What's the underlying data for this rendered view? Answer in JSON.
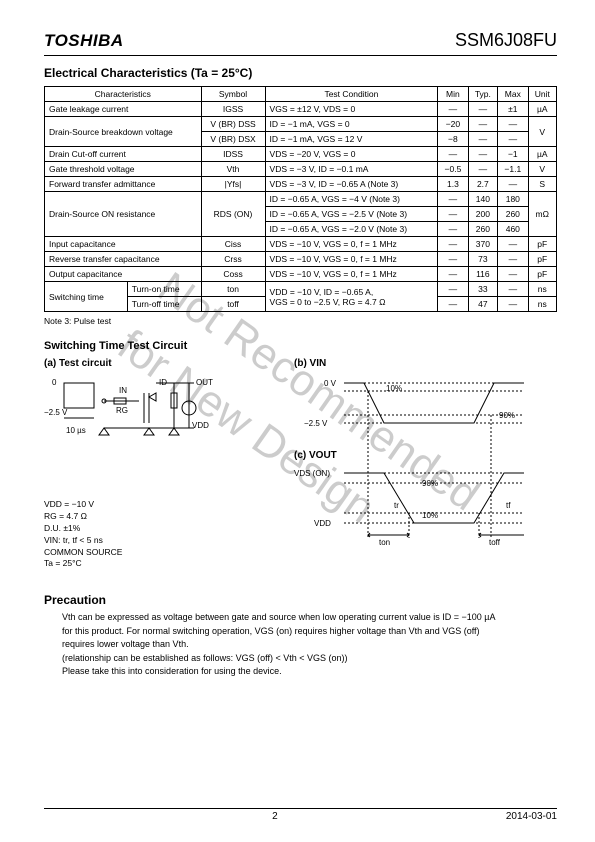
{
  "header": {
    "logo": "TOSHIBA",
    "part": "SSM6J08FU"
  },
  "sec1": {
    "title": "Electrical Characteristics (Ta = 25°C)"
  },
  "table": {
    "head": {
      "c1": "Characteristics",
      "c2": "Symbol",
      "c3": "Test Condition",
      "c4": "Min",
      "c5": "Typ.",
      "c6": "Max",
      "c7": "Unit"
    },
    "rows": [
      {
        "c1": "Gate leakage current",
        "c2": "IGSS",
        "c3": "VGS = ±12 V, VDS = 0",
        "c4": "—",
        "c5": "—",
        "c6": "±1",
        "c7": "µA"
      },
      {
        "c1": "Drain-Source breakdown voltage",
        "rs1": 2,
        "c2": "V (BR) DSS",
        "c3": "ID = −1 mA, VGS = 0",
        "c4": "−20",
        "c5": "—",
        "c6": "—",
        "c7": "V",
        "rs7": 2
      },
      {
        "c2": "V (BR) DSX",
        "c3": "ID = −1 mA, VGS = 12 V",
        "c4": "−8",
        "c5": "—",
        "c6": "—"
      },
      {
        "c1": "Drain Cut-off current",
        "c2": "IDSS",
        "c3": "VDS = −20 V, VGS = 0",
        "c4": "—",
        "c5": "—",
        "c6": "−1",
        "c7": "µA"
      },
      {
        "c1": "Gate threshold voltage",
        "c2": "Vth",
        "c3": "VDS = −3 V, ID = −0.1 mA",
        "c4": "−0.5",
        "c5": "—",
        "c6": "−1.1",
        "c7": "V"
      },
      {
        "c1": "Forward transfer admittance",
        "c2": "|Yfs|",
        "c3": "VDS = −3 V, ID = −0.65 A              (Note 3)",
        "c4": "1.3",
        "c5": "2.7",
        "c6": "—",
        "c7": "S"
      },
      {
        "c1": "Drain-Source ON resistance",
        "rs1": 3,
        "c2": "RDS (ON)",
        "rs2": 3,
        "c3": "ID = −0.65 A, VGS = −4 V              (Note 3)",
        "c4": "—",
        "c5": "140",
        "c6": "180",
        "c7": "mΩ",
        "rs7": 3
      },
      {
        "c3": "ID = −0.65 A, VGS = −2.5 V           (Note 3)",
        "c4": "—",
        "c5": "200",
        "c6": "260"
      },
      {
        "c3": "ID = −0.65 A, VGS = −2.0 V           (Note 3)",
        "c4": "—",
        "c5": "260",
        "c6": "460"
      },
      {
        "c1": "Input capacitance",
        "c2": "Ciss",
        "c3": "VDS = −10 V, VGS = 0, f = 1 MHz",
        "c4": "—",
        "c5": "370",
        "c6": "—",
        "c7": "pF"
      },
      {
        "c1": "Reverse transfer capacitance",
        "c2": "Crss",
        "c3": "VDS = −10 V, VGS = 0, f = 1 MHz",
        "c4": "—",
        "c5": "73",
        "c6": "—",
        "c7": "pF"
      },
      {
        "c1": "Output capacitance",
        "c2": "Coss",
        "c3": "VDS = −10 V, VGS = 0, f = 1 MHz",
        "c4": "—",
        "c5": "116",
        "c6": "—",
        "c7": "pF"
      },
      {
        "c1": "Switching time",
        "rs1": 2,
        "c1b": "Turn-on time",
        "c2": "ton",
        "c3": "VDD = −10 V, ID = −0.65 A,",
        "rs3": 2,
        "c4": "—",
        "c5": "33",
        "c6": "—",
        "c7": "ns"
      },
      {
        "c1b": "Turn-off time",
        "c2": "toff",
        "c3b": "VGS = 0 to −2.5 V, RG = 4.7 Ω",
        "c4": "—",
        "c5": "47",
        "c6": "—",
        "c7": "ns"
      }
    ],
    "note3": "Note 3:   Pulse test"
  },
  "circ": {
    "title": "Switching Time Test Circuit",
    "a": "(a) Test circuit",
    "b": "(b) VIN",
    "c": "(c) VOUT",
    "v0": "0",
    "v25": "−2.5 V",
    "tenus": "10 µs",
    "in": "IN",
    "id": "ID",
    "out": "OUT",
    "rg": "RG",
    "vdd": "VDD",
    "zero": "0 V",
    "ten": "10%",
    "ninety": "90%",
    "vdson": "VDS (ON)",
    "vdd2": "VDD",
    "ton": "ton",
    "toff": "toff",
    "tr": "tr",
    "tf": "tf",
    "info1": "VDD = −10 V",
    "info2": "RG = 4.7 Ω",
    "info3": "D.U. ±1%",
    "info4": "VIN: tr, tf < 5 ns",
    "info5": "COMMON SOURCE",
    "info6": "Ta = 25°C"
  },
  "prec": {
    "title": "Precaution",
    "l1": "Vth can be expressed as voltage between gate and source when low operating current value is ID = −100 µA",
    "l2": "for this product. For normal switching operation, VGS (on) requires higher voltage than Vth and VGS (off)",
    "l3": "requires lower voltage than Vth.",
    "l4": "(relationship can be established as follows: VGS (off) < Vth < VGS (on))",
    "l5": "Please take this into consideration for using the device."
  },
  "footer": {
    "page": "2",
    "date": "2014-03-01"
  },
  "wm": {
    "l1": "Not Recommended",
    "l2": "for New Design"
  }
}
